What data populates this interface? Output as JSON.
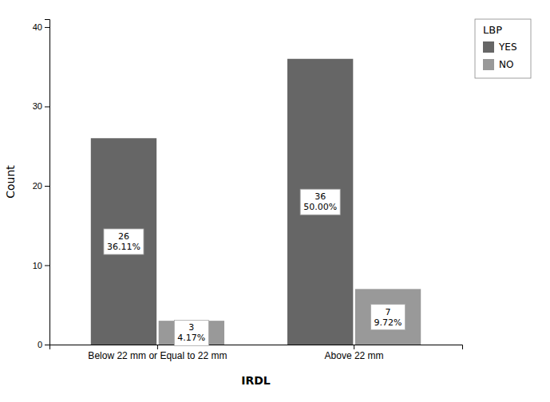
{
  "chart_data": {
    "type": "bar",
    "categories": [
      "Below 22 mm or Equal to 22 mm",
      "Above 22 mm"
    ],
    "series": [
      {
        "name": "YES",
        "color": "#666666",
        "values": [
          26,
          36
        ],
        "value_labels": [
          "26\n36.11%",
          "36\n50.00%"
        ]
      },
      {
        "name": "NO",
        "color": "#999999",
        "values": [
          3,
          7
        ],
        "value_labels": [
          "3\n4.17%",
          "7\n9.72%"
        ]
      }
    ],
    "xlabel": "IRDL",
    "ylabel": "Count",
    "legend_title": "LBP",
    "legend": "right",
    "ylim": [
      0,
      41
    ],
    "yticks": [
      0,
      10,
      20,
      30,
      40
    ],
    "grid": false,
    "data_labels": true
  }
}
